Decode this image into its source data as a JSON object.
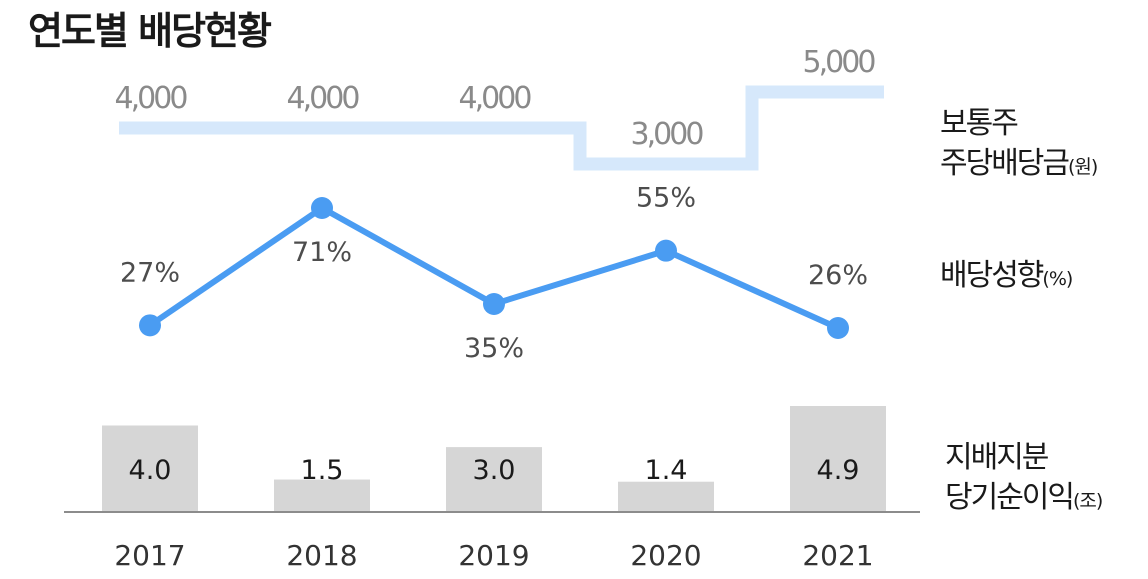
{
  "title": "연도별 배당현황",
  "colors": {
    "dividend_line": "#d6e8fb",
    "dividend_label": "#8a8a8a",
    "payout_line": "#4a9cf2",
    "payout_label": "#4d4d4d",
    "bar_fill": "#d6d6d6",
    "bar_label": "#1a1a1a",
    "axis": "#8c8c8c",
    "year_label": "#333333"
  },
  "legends": {
    "dividend": {
      "line1": "보통주",
      "line2": "주당배당금",
      "unit": "(원)"
    },
    "payout": {
      "line1": "배당성향",
      "unit": "(%)"
    },
    "profit": {
      "line1": "지배지분",
      "line2": "당기순이익",
      "unit": "(조)"
    }
  },
  "chart_data": {
    "type": "bar",
    "title": "연도별 배당현황",
    "categories": [
      "2017",
      "2018",
      "2019",
      "2020",
      "2021"
    ],
    "series": [
      {
        "name": "보통주 주당배당금(원)",
        "type": "step",
        "values": [
          4000,
          4000,
          4000,
          3000,
          5000
        ],
        "labels": [
          "4,000",
          "4,000",
          "4,000",
          "3,000",
          "5,000"
        ]
      },
      {
        "name": "배당성향(%)",
        "type": "line",
        "values": [
          27,
          71,
          35,
          55,
          26
        ],
        "labels": [
          "27%",
          "71%",
          "35%",
          "55%",
          "26%"
        ]
      },
      {
        "name": "지배지분 당기순이익(조)",
        "type": "bar",
        "values": [
          4.0,
          1.5,
          3.0,
          1.4,
          4.9
        ],
        "labels": [
          "4.0",
          "1.5",
          "3.0",
          "1.4",
          "4.9"
        ]
      }
    ]
  }
}
